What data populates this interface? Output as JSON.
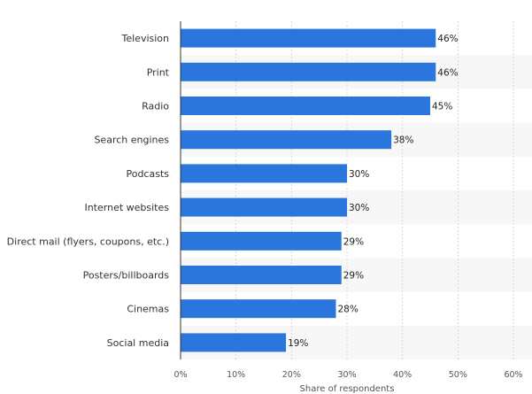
{
  "chart_data": {
    "type": "bar",
    "orientation": "horizontal",
    "categories": [
      "Television",
      "Print",
      "Radio",
      "Search engines",
      "Podcasts",
      "Internet websites",
      "Direct mail (flyers, coupons, etc.)",
      "Posters/billboards",
      "Cinemas",
      "Social media"
    ],
    "values": [
      46,
      46,
      45,
      38,
      30,
      30,
      29,
      29,
      28,
      19
    ],
    "value_labels": [
      "46%",
      "46%",
      "45%",
      "38%",
      "30%",
      "30%",
      "29%",
      "29%",
      "28%",
      "19%"
    ],
    "xlabel": "Share of respondents",
    "ylabel": "",
    "xlim": [
      0,
      60
    ],
    "x_ticks": [
      "0%",
      "10%",
      "20%",
      "30%",
      "40%",
      "50%",
      "60%"
    ],
    "grid": true,
    "colors": {
      "bar": "#2a76dd",
      "band": "#f7f7f7",
      "grid": "#d7d7d7",
      "axis": "#333333"
    }
  }
}
